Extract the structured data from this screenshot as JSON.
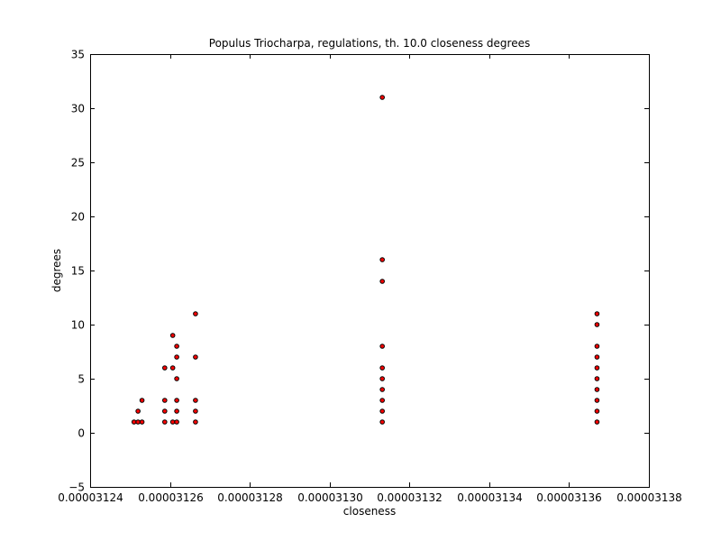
{
  "chart_data": {
    "type": "scatter",
    "title": "Populus Triocharpa, regulations, th. 10.0 closeness degrees",
    "xlabel": "closeness",
    "ylabel": "degrees",
    "xlim": [
      3.124e-05,
      3.138e-05
    ],
    "ylim": [
      -5,
      35
    ],
    "x_ticks": [
      3.124e-05,
      3.126e-05,
      3.128e-05,
      3.13e-05,
      3.132e-05,
      3.134e-05,
      3.136e-05,
      3.138e-05
    ],
    "x_tick_labels": [
      "0.00003124",
      "0.00003126",
      "0.00003128",
      "0.00003130",
      "0.00003132",
      "0.00003134",
      "0.00003136",
      "0.00003138"
    ],
    "y_ticks": [
      -5,
      0,
      5,
      10,
      15,
      20,
      25,
      30,
      35
    ],
    "y_tick_labels": [
      "−5",
      "0",
      "5",
      "10",
      "15",
      "20",
      "25",
      "30",
      "35"
    ],
    "grid": false,
    "marker_color": "#ff0000",
    "marker_edge_color": "#000000",
    "points": [
      [
        3.1251e-05,
        1
      ],
      [
        3.1252e-05,
        1
      ],
      [
        3.1252e-05,
        2
      ],
      [
        3.1253e-05,
        1
      ],
      [
        3.1253e-05,
        3
      ],
      [
        3.12587e-05,
        1
      ],
      [
        3.12587e-05,
        2
      ],
      [
        3.12587e-05,
        3
      ],
      [
        3.12587e-05,
        6
      ],
      [
        3.12607e-05,
        1
      ],
      [
        3.12607e-05,
        6
      ],
      [
        3.12607e-05,
        9
      ],
      [
        3.12617e-05,
        1
      ],
      [
        3.12617e-05,
        2
      ],
      [
        3.12617e-05,
        3
      ],
      [
        3.12617e-05,
        5
      ],
      [
        3.12617e-05,
        7
      ],
      [
        3.12617e-05,
        8
      ],
      [
        3.12664e-05,
        1
      ],
      [
        3.12664e-05,
        2
      ],
      [
        3.12664e-05,
        3
      ],
      [
        3.12664e-05,
        7
      ],
      [
        3.12664e-05,
        11
      ],
      [
        3.13132e-05,
        1
      ],
      [
        3.13132e-05,
        2
      ],
      [
        3.13132e-05,
        3
      ],
      [
        3.13132e-05,
        4
      ],
      [
        3.13132e-05,
        5
      ],
      [
        3.13132e-05,
        6
      ],
      [
        3.13132e-05,
        8
      ],
      [
        3.13132e-05,
        14
      ],
      [
        3.13132e-05,
        16
      ],
      [
        3.13132e-05,
        31
      ],
      [
        3.1367e-05,
        1
      ],
      [
        3.1367e-05,
        2
      ],
      [
        3.1367e-05,
        3
      ],
      [
        3.1367e-05,
        4
      ],
      [
        3.1367e-05,
        5
      ],
      [
        3.1367e-05,
        6
      ],
      [
        3.1367e-05,
        7
      ],
      [
        3.1367e-05,
        8
      ],
      [
        3.1367e-05,
        10
      ],
      [
        3.1367e-05,
        11
      ]
    ]
  }
}
